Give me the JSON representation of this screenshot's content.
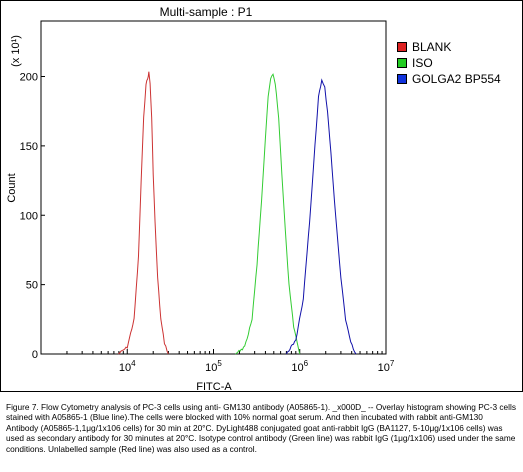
{
  "chart_data": {
    "type": "line",
    "title": "Multi-sample : P1",
    "xlabel": "FITC-A",
    "ylabel": "Count",
    "y_multiplier": "(x 10¹)",
    "x_scale": "log",
    "xlim": [
      1000,
      10000000
    ],
    "ylim": [
      0,
      240
    ],
    "x_tick_labels": [
      {
        "base": "10",
        "exp": "4",
        "value": 10000
      },
      {
        "base": "10",
        "exp": "5",
        "value": 100000
      },
      {
        "base": "10",
        "exp": "6",
        "value": 1000000
      },
      {
        "base": "10",
        "exp": "7",
        "value": 10000000
      }
    ],
    "y_ticks": [
      0,
      50,
      100,
      150,
      200
    ],
    "legend_position": "right",
    "series": [
      {
        "name": "BLANK",
        "color": "#cc3333",
        "swatch": "#dd2222",
        "x": [
          7900,
          10000,
          12000,
          13500,
          14500,
          15500,
          16500,
          17200,
          17800,
          18400,
          19200,
          20000,
          21000,
          22500,
          24500,
          27000,
          30000
        ],
        "y": [
          0,
          5,
          25,
          70,
          125,
          170,
          195,
          198,
          203,
          195,
          170,
          130,
          95,
          55,
          25,
          8,
          0
        ]
      },
      {
        "name": "ISO",
        "color": "#33cc33",
        "swatch": "#22cc22",
        "x": [
          180000,
          230000,
          280000,
          320000,
          360000,
          400000,
          430000,
          460000,
          490000,
          520000,
          570000,
          620000,
          680000,
          750000,
          850000,
          1000000
        ],
        "y": [
          0,
          5,
          25,
          65,
          110,
          155,
          185,
          198,
          202,
          195,
          170,
          130,
          90,
          50,
          20,
          0
        ]
      },
      {
        "name": "GOLGA2 BP554",
        "color": "#1111aa",
        "swatch": "#1133dd",
        "x": [
          700000,
          900000,
          1100000,
          1300000,
          1500000,
          1650000,
          1800000,
          1950000,
          2100000,
          2300000,
          2600000,
          3000000,
          3400000,
          3900000,
          4500000
        ],
        "y": [
          0,
          10,
          40,
          95,
          150,
          185,
          198,
          192,
          175,
          145,
          100,
          55,
          25,
          8,
          0
        ]
      }
    ]
  },
  "caption": "Figure 7. Flow Cytometry analysis of PC-3 cells using anti- GM130 antibody (A05865-1). _x000D_ -- Overlay histogram showing PC-3 cells stained with A05865-1 (Blue line).The cells were blocked with 10% normal goat serum. And then incubated with rabbit anti-GM130 Antibody (A05865-1,1μg/1x106 cells) for 30 min at 20°C. DyLight488 conjugated goat anti-rabbit IgG (BA1127, 5-10μg/1x106 cells) was used as secondary antibody for 30 minutes at 20°C. Isotype control antibody (Green line) was rabbit IgG (1μg/1x106) used under the same conditions. Unlabelled sample (Red line) was also used as a control."
}
